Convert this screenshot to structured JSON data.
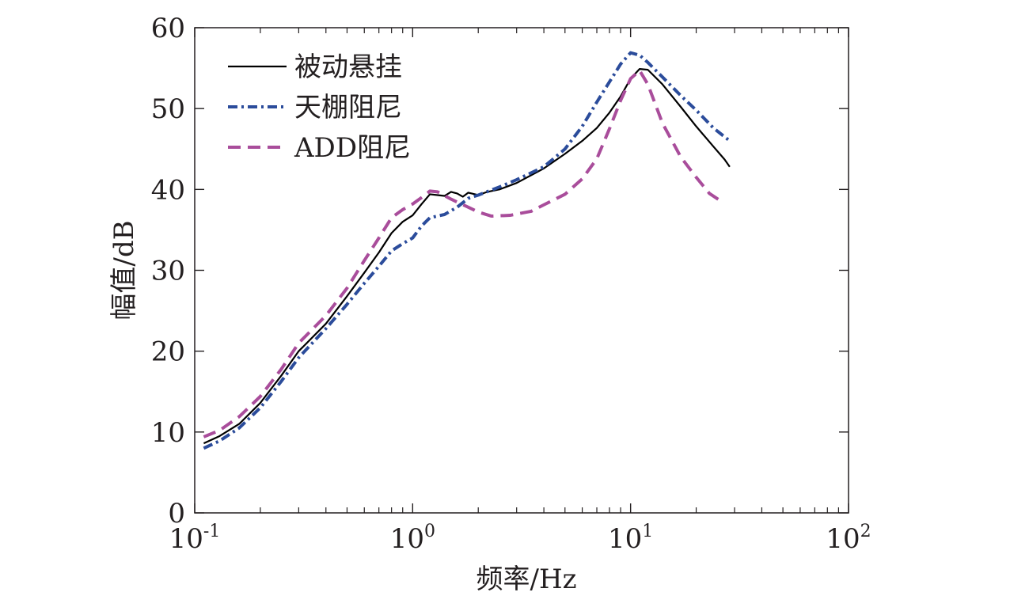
{
  "chart_data": {
    "type": "line",
    "title": "",
    "xlabel": "频率/Hz",
    "ylabel": "幅值/dB",
    "xscale": "log",
    "xlim": [
      0.1,
      100
    ],
    "ylim": [
      0,
      60
    ],
    "x_ticks": [
      {
        "base": "10",
        "exp": "-1",
        "value": 0.1
      },
      {
        "base": "10",
        "exp": "0",
        "value": 1
      },
      {
        "base": "10",
        "exp": "1",
        "value": 10
      },
      {
        "base": "10",
        "exp": "2",
        "value": 100
      }
    ],
    "y_ticks": [
      {
        "label": "0",
        "value": 0
      },
      {
        "label": "10",
        "value": 10
      },
      {
        "label": "20",
        "value": 20
      },
      {
        "label": "30",
        "value": 30
      },
      {
        "label": "40",
        "value": 40
      },
      {
        "label": "50",
        "value": 50
      },
      {
        "label": "60",
        "value": 60
      }
    ],
    "grid": false,
    "legend_position": "top-left",
    "series": [
      {
        "name": "被动悬挂",
        "color": "#000000",
        "dash": "solid",
        "points": [
          [
            0.11,
            8.6
          ],
          [
            0.13,
            9.5
          ],
          [
            0.16,
            11.0
          ],
          [
            0.2,
            13.6
          ],
          [
            0.25,
            17.0
          ],
          [
            0.3,
            20.0
          ],
          [
            0.4,
            23.4
          ],
          [
            0.5,
            26.8
          ],
          [
            0.6,
            29.7
          ],
          [
            0.7,
            32.2
          ],
          [
            0.8,
            34.6
          ],
          [
            0.9,
            36.0
          ],
          [
            1.0,
            36.8
          ],
          [
            1.1,
            38.2
          ],
          [
            1.2,
            39.4
          ],
          [
            1.3,
            39.3
          ],
          [
            1.4,
            39.2
          ],
          [
            1.5,
            39.7
          ],
          [
            1.6,
            39.5
          ],
          [
            1.7,
            39.1
          ],
          [
            1.8,
            39.6
          ],
          [
            2.0,
            39.3
          ],
          [
            2.2,
            39.7
          ],
          [
            2.5,
            40.0
          ],
          [
            3.0,
            40.8
          ],
          [
            4.0,
            42.6
          ],
          [
            5.0,
            44.4
          ],
          [
            6.0,
            46.0
          ],
          [
            7.0,
            47.6
          ],
          [
            8.0,
            49.5
          ],
          [
            9.0,
            51.5
          ],
          [
            10.0,
            53.7
          ],
          [
            11.0,
            54.9
          ],
          [
            12.0,
            54.8
          ],
          [
            14.0,
            53.0
          ],
          [
            17.0,
            50.2
          ],
          [
            20.0,
            47.8
          ],
          [
            24.0,
            45.3
          ],
          [
            27.0,
            43.7
          ],
          [
            28.5,
            42.8
          ]
        ]
      },
      {
        "name": "天棚阻尼",
        "color": "#2b4c9b",
        "dash": "dashdot",
        "points": [
          [
            0.11,
            8.0
          ],
          [
            0.13,
            8.9
          ],
          [
            0.16,
            10.5
          ],
          [
            0.2,
            13.0
          ],
          [
            0.25,
            16.3
          ],
          [
            0.3,
            19.2
          ],
          [
            0.4,
            22.8
          ],
          [
            0.5,
            25.8
          ],
          [
            0.6,
            28.4
          ],
          [
            0.7,
            30.5
          ],
          [
            0.8,
            32.4
          ],
          [
            0.9,
            33.3
          ],
          [
            1.0,
            34.0
          ],
          [
            1.1,
            35.5
          ],
          [
            1.2,
            36.5
          ],
          [
            1.4,
            36.9
          ],
          [
            1.6,
            37.8
          ],
          [
            1.8,
            38.9
          ],
          [
            2.0,
            39.3
          ],
          [
            2.5,
            40.3
          ],
          [
            3.0,
            41.2
          ],
          [
            4.0,
            42.8
          ],
          [
            5.0,
            45.0
          ],
          [
            6.0,
            47.8
          ],
          [
            7.0,
            50.8
          ],
          [
            8.0,
            53.3
          ],
          [
            9.0,
            55.5
          ],
          [
            10.0,
            56.9
          ],
          [
            11.0,
            56.6
          ],
          [
            12.0,
            55.7
          ],
          [
            14.0,
            53.9
          ],
          [
            17.0,
            51.6
          ],
          [
            20.0,
            49.8
          ],
          [
            24.0,
            47.6
          ],
          [
            28.5,
            46.0
          ]
        ]
      },
      {
        "name": "ADD阻尼",
        "color": "#a94d9b",
        "dash": "dashed",
        "points": [
          [
            0.11,
            9.4
          ],
          [
            0.13,
            10.2
          ],
          [
            0.16,
            11.9
          ],
          [
            0.2,
            14.4
          ],
          [
            0.25,
            17.8
          ],
          [
            0.3,
            21.0
          ],
          [
            0.4,
            24.4
          ],
          [
            0.5,
            27.8
          ],
          [
            0.6,
            31.2
          ],
          [
            0.7,
            34.0
          ],
          [
            0.8,
            36.5
          ],
          [
            0.9,
            37.5
          ],
          [
            1.0,
            38.2
          ],
          [
            1.1,
            39.0
          ],
          [
            1.2,
            39.8
          ],
          [
            1.3,
            39.7
          ],
          [
            1.5,
            38.8
          ],
          [
            1.8,
            37.8
          ],
          [
            2.0,
            37.2
          ],
          [
            2.3,
            36.7
          ],
          [
            2.8,
            36.8
          ],
          [
            3.5,
            37.3
          ],
          [
            4.0,
            38.1
          ],
          [
            5.0,
            39.4
          ],
          [
            6.0,
            41.3
          ],
          [
            7.0,
            43.8
          ],
          [
            8.0,
            47.5
          ],
          [
            9.0,
            51.0
          ],
          [
            10.0,
            53.7
          ],
          [
            11.0,
            54.7
          ],
          [
            12.0,
            53.0
          ],
          [
            14.0,
            48.2
          ],
          [
            17.0,
            44.0
          ],
          [
            20.0,
            41.5
          ],
          [
            23.0,
            39.5
          ],
          [
            26.5,
            38.4
          ]
        ]
      }
    ]
  }
}
